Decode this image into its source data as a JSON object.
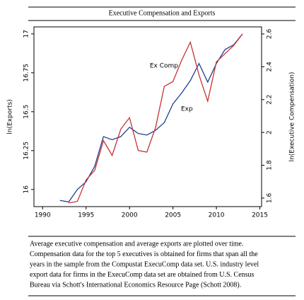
{
  "chart_data": {
    "type": "line",
    "title": "Executive Compensation and Exports",
    "x": [
      1992,
      1993,
      1994,
      1995,
      1996,
      1997,
      1998,
      1999,
      2000,
      2001,
      2002,
      2003,
      2004,
      2005,
      2006,
      2007,
      2008,
      2009,
      2010,
      2011,
      2012,
      2013
    ],
    "series": [
      {
        "name": "Exp",
        "color": "#1f3f8f",
        "values": [
          15.93,
          15.92,
          16.0,
          16.05,
          16.15,
          16.34,
          16.32,
          16.34,
          16.4,
          16.36,
          16.35,
          16.38,
          16.43,
          16.55,
          16.62,
          16.7,
          16.81,
          16.69,
          16.81,
          16.9,
          16.93,
          17.0
        ]
      },
      {
        "name": "Ex Comp",
        "color": "#c83232",
        "axis": "y2",
        "values": [
          null,
          1.57,
          1.58,
          1.71,
          1.77,
          1.95,
          1.86,
          2.02,
          2.09,
          1.89,
          1.88,
          2.03,
          2.28,
          2.31,
          2.44,
          2.55,
          2.35,
          2.19,
          2.43,
          2.48,
          2.53,
          2.6
        ]
      }
    ],
    "y_label": "ln(Exports)",
    "y2_label": "ln(Executive Compensation)",
    "xlim": [
      1989,
      2015.2
    ],
    "xticks": [
      1990,
      1995,
      2000,
      2005,
      2010,
      2015
    ],
    "ylim": [
      15.89,
      17.045
    ],
    "yticks": [
      16,
      16.25,
      16.5,
      16.75,
      17
    ],
    "y2lim": [
      1.548,
      2.643
    ],
    "y2ticks": [
      1.6,
      1.8,
      2,
      2.2,
      2.4,
      2.6
    ],
    "caption": [
      "Average executive compensation and average exports are plotted over time.",
      "Compensation data for the top 5 executives is obtained for firms that span all the",
      "years in the sample from the Compustat ExecuComp data set. U.S. industry level",
      "export data for firms in the ExecuComp data set are obtained from U.S. Census",
      "Bureau via Schott's International Economics Resource Page (Schott 2008)."
    ]
  }
}
